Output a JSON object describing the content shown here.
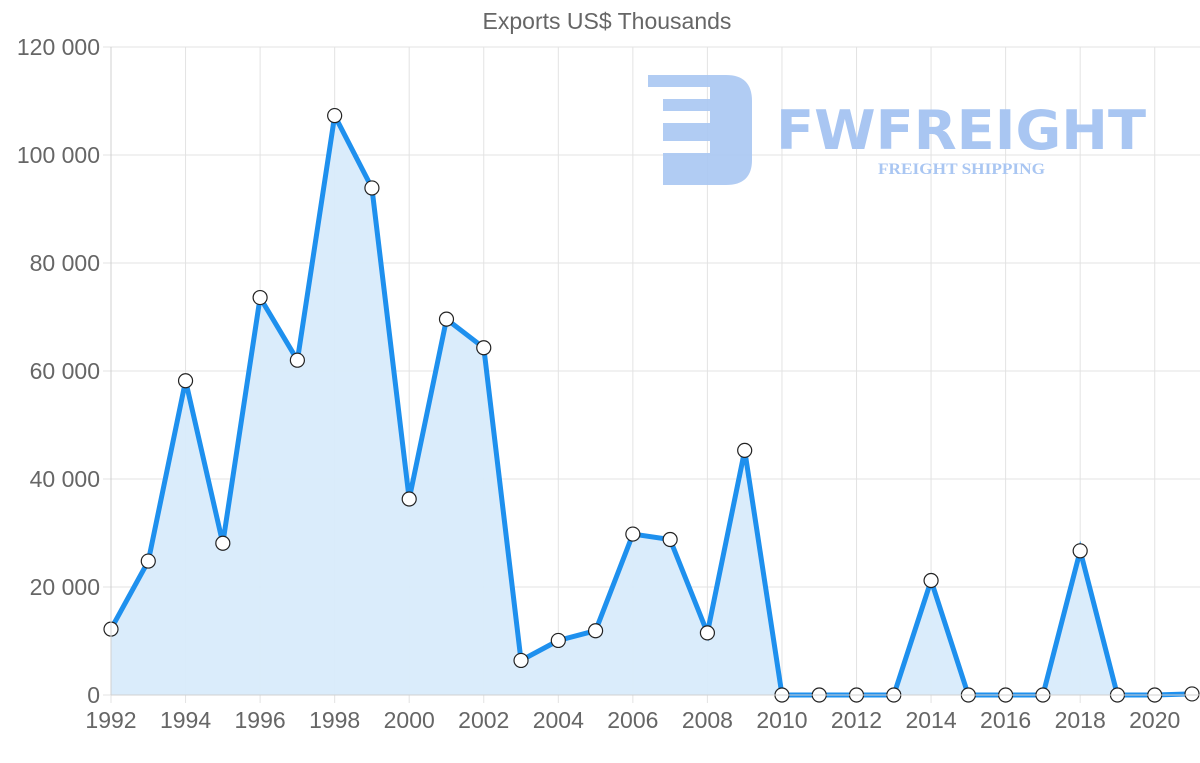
{
  "chart_data": {
    "type": "line",
    "title": "Exports US$ Thousands",
    "xlabel": "",
    "ylabel": "",
    "ylim": [
      0,
      120000
    ],
    "grid": true,
    "legend": null,
    "filled_area": true,
    "x": [
      1992,
      1993,
      1994,
      1995,
      1996,
      1997,
      1998,
      1999,
      2000,
      2001,
      2002,
      2003,
      2004,
      2005,
      2006,
      2007,
      2008,
      2009,
      2010,
      2011,
      2012,
      2013,
      2014,
      2015,
      2016,
      2017,
      2018,
      2019,
      2020,
      2021
    ],
    "series": [
      {
        "name": "Exports US$ Thousands",
        "values": [
          12200,
          24800,
          58200,
          28100,
          73600,
          62000,
          107300,
          93900,
          36300,
          69600,
          64300,
          6400,
          10100,
          11900,
          29800,
          28800,
          11500,
          45300,
          0,
          0,
          0,
          0,
          21200,
          0,
          0,
          0,
          26700,
          0,
          0,
          200
        ]
      }
    ],
    "y_ticks": [
      "0",
      "20 000",
      "40 000",
      "60 000",
      "80 000",
      "100 000",
      "120 000"
    ],
    "y_tick_values": [
      0,
      20000,
      40000,
      60000,
      80000,
      100000,
      120000
    ],
    "x_ticks": [
      "1992",
      "1994",
      "1996",
      "1998",
      "2000",
      "2002",
      "2004",
      "2006",
      "2008",
      "2010",
      "2012",
      "2014",
      "2016",
      "2018",
      "2020"
    ],
    "colors": {
      "line": "#1e90ee",
      "fill": "#d8ebfb",
      "grid": "#e3e3e3",
      "text": "#666666"
    }
  },
  "watermark": {
    "brand": "FWFREIGHT",
    "tagline": "FREIGHT SHIPPING",
    "color": "#a9c6f2"
  }
}
